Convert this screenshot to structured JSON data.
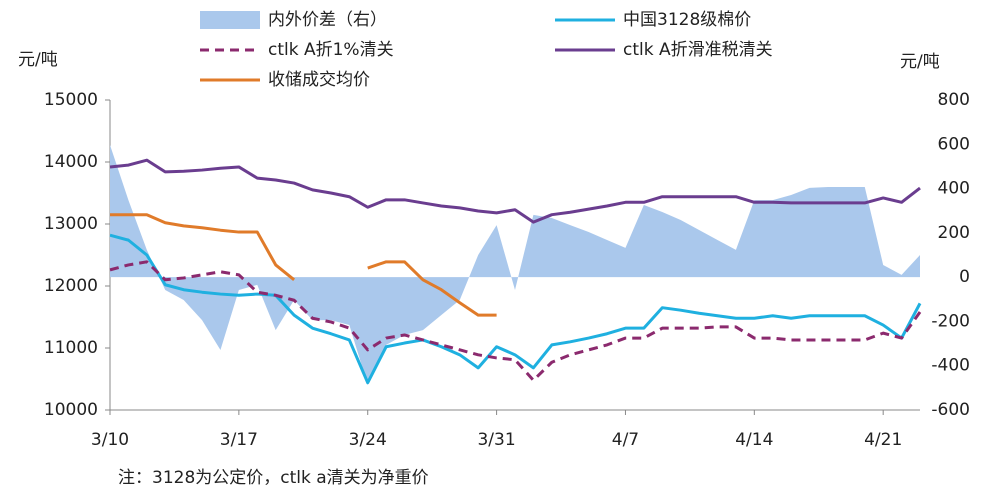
{
  "chart_data": {
    "type": "line",
    "y_label": "元/吨",
    "y2_label": "元/吨",
    "note": "注：3128为公定价，ctlk a清关为净重价",
    "categories": [
      "3/10",
      null,
      null,
      null,
      null,
      null,
      null,
      "3/17",
      null,
      null,
      null,
      null,
      null,
      null,
      "3/24",
      null,
      null,
      null,
      null,
      null,
      null,
      "3/31",
      null,
      null,
      null,
      null,
      null,
      null,
      "4/7",
      null,
      null,
      null,
      null,
      null,
      null,
      "4/14",
      null,
      null,
      null,
      null,
      null,
      null,
      "4/21",
      null,
      null
    ],
    "ylim": [
      10000,
      15000
    ],
    "yticks": [
      10000,
      11000,
      12000,
      13000,
      14000,
      15000
    ],
    "y2lim": [
      -600,
      800
    ],
    "y2ticks": [
      -600,
      -400,
      -200,
      0,
      200,
      400,
      600,
      800
    ],
    "series": [
      {
        "name": "内外价差（右）",
        "color": "#aac8ec",
        "style": "area",
        "axis": "y2",
        "values": [
          597,
          348,
          123,
          -58,
          -103,
          -194,
          -329,
          -58,
          -35,
          -239,
          -103,
          -194,
          -194,
          -216,
          -487,
          -306,
          -261,
          -239,
          -171,
          -103,
          100,
          235,
          -58,
          281,
          267,
          235,
          204,
          168,
          132,
          326,
          294,
          258,
          213,
          168,
          123,
          348,
          348,
          371,
          403,
          407,
          407,
          407,
          55,
          10,
          100
        ]
      },
      {
        "name": "中国3128级棉价",
        "color": "#1fb0e0",
        "style": "solid",
        "values": [
          12820,
          12740,
          12500,
          12020,
          11940,
          11900,
          11870,
          11850,
          11870,
          11850,
          11530,
          11320,
          11230,
          11130,
          10440,
          11020,
          11080,
          11130,
          11020,
          10890,
          10680,
          11020,
          10890,
          10680,
          11050,
          11100,
          11160,
          11230,
          11320,
          11320,
          11650,
          11610,
          11560,
          11520,
          11480,
          11480,
          11520,
          11480,
          11520,
          11520,
          11520,
          11520,
          11370,
          11160,
          11720
        ]
      },
      {
        "name": "ctlk A折1%清关",
        "color": "#8b2a6e",
        "style": "dashed",
        "values": [
          12260,
          12340,
          12390,
          12100,
          12130,
          12180,
          12230,
          12180,
          11900,
          11850,
          11770,
          11480,
          11420,
          11320,
          10970,
          11160,
          11210,
          11130,
          11050,
          10970,
          10890,
          10840,
          10810,
          10480,
          10770,
          10890,
          10970,
          11050,
          11160,
          11160,
          11320,
          11320,
          11320,
          11340,
          11340,
          11160,
          11160,
          11130,
          11130,
          11130,
          11130,
          11130,
          11240,
          11160,
          11580
        ]
      },
      {
        "name": "ctlk A折滑准税清关",
        "color": "#6a3d8f",
        "style": "solid",
        "values": [
          13920,
          13950,
          14030,
          13840,
          13850,
          13870,
          13900,
          13920,
          13740,
          13710,
          13660,
          13550,
          13500,
          13440,
          13270,
          13390,
          13390,
          13340,
          13290,
          13260,
          13210,
          13180,
          13230,
          13030,
          13150,
          13190,
          13240,
          13290,
          13350,
          13350,
          13440,
          13440,
          13440,
          13440,
          13440,
          13350,
          13350,
          13340,
          13340,
          13340,
          13340,
          13340,
          13420,
          13350,
          13580
        ]
      },
      {
        "name": "收储成交均价",
        "color": "#e07b2a",
        "style": "solid",
        "values": [
          13150,
          13150,
          13150,
          13020,
          12970,
          12940,
          12900,
          12870,
          12870,
          12340,
          12100,
          null,
          null,
          null,
          12290,
          12390,
          12390,
          12100,
          11940,
          11730,
          11530,
          11530,
          null,
          null,
          null,
          null,
          null,
          null,
          null,
          null,
          null,
          null,
          null,
          null,
          null,
          null,
          null,
          null,
          null,
          null,
          null,
          null,
          null,
          null,
          null
        ]
      }
    ]
  }
}
